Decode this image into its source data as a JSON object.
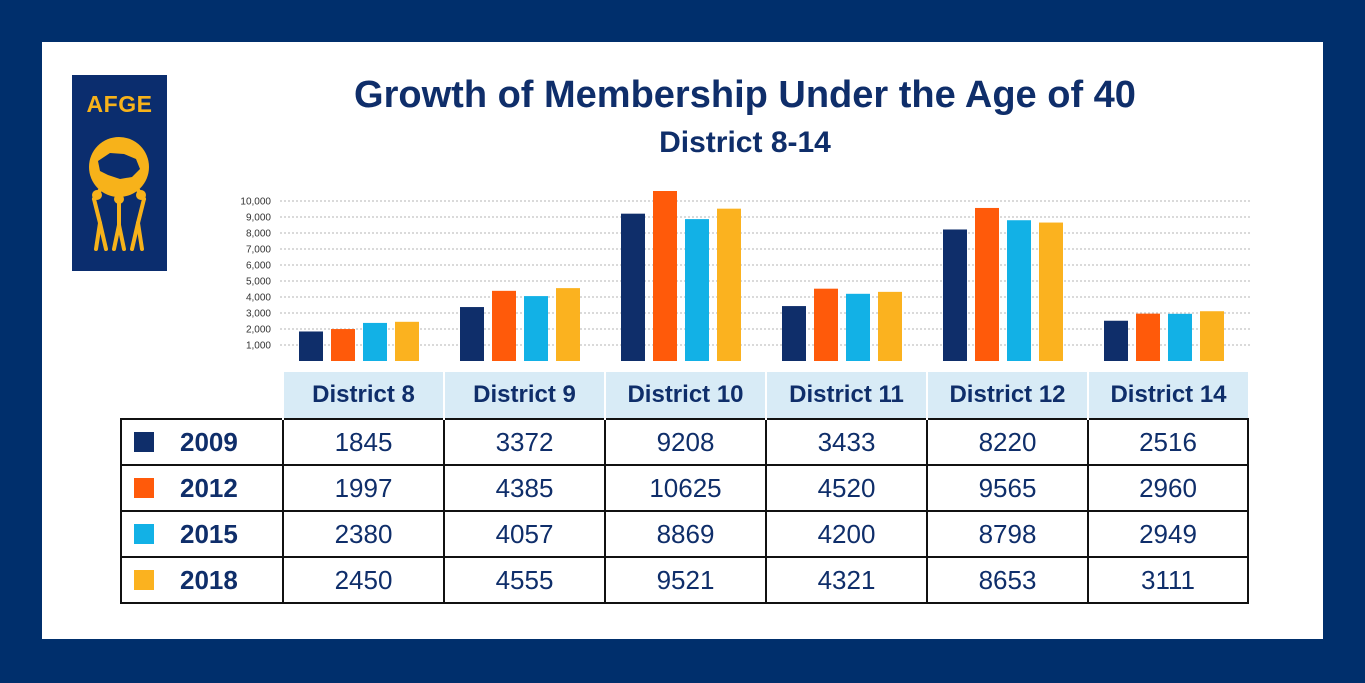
{
  "header": {
    "logo_text": "AFGE",
    "title": "Growth of Membership Under the Age of 40",
    "subtitle": "District 8-14"
  },
  "colors": {
    "background": "#002f6c",
    "panel": "#ffffff",
    "header_cell": "#d8ebf6",
    "title_text": "#0f2e6a",
    "logo_accent": "#f7b21a"
  },
  "chart_data": {
    "type": "bar",
    "title": "Growth of Membership Under the Age of 40",
    "subtitle": "District 8-14",
    "categories": [
      "District 8",
      "District 9",
      "District 10",
      "District 11",
      "District 12",
      "District 14"
    ],
    "series": [
      {
        "name": "2009",
        "color": "#0f2e6a",
        "values": [
          1845,
          3372,
          9208,
          3433,
          8220,
          2516
        ]
      },
      {
        "name": "2012",
        "color": "#ff5a0a",
        "values": [
          1997,
          4385,
          10625,
          4520,
          9565,
          2960
        ]
      },
      {
        "name": "2015",
        "color": "#12b1e6",
        "values": [
          2380,
          4057,
          8869,
          4200,
          8798,
          2949
        ]
      },
      {
        "name": "2018",
        "color": "#fbb21f",
        "values": [
          2450,
          4555,
          9521,
          4321,
          8653,
          3111
        ]
      }
    ],
    "yticks": [
      "1,000",
      "2,000",
      "3,000",
      "4,000",
      "5,000",
      "6,000",
      "7,000",
      "8,000",
      "9,000",
      "10,000"
    ],
    "ylim": [
      0,
      10625
    ],
    "grid": true,
    "legend": "table-left"
  }
}
